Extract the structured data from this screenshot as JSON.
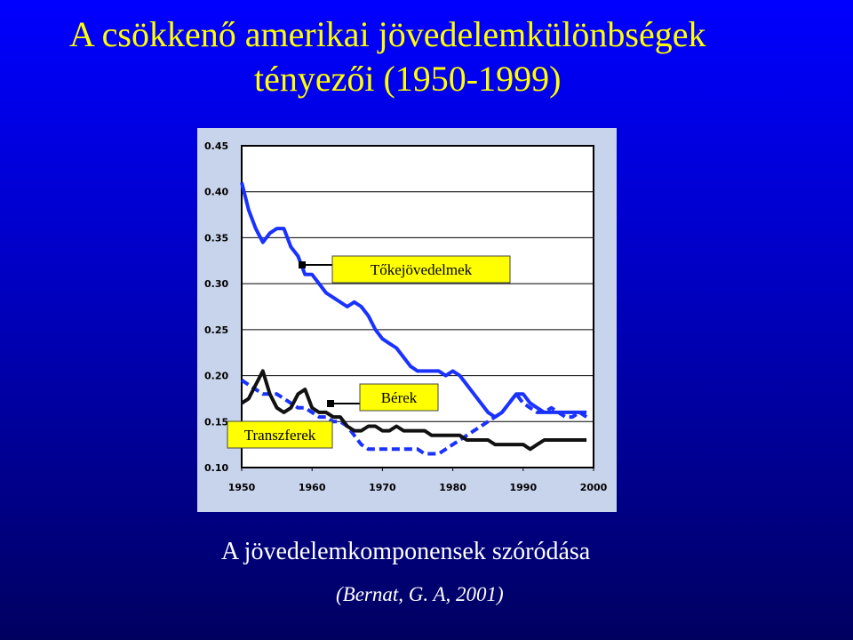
{
  "slide": {
    "title_line1": "A csökkenő amerikai jövedelemkülönbségek",
    "title_line2": "tényezői  (1950-1999)",
    "caption": "A jövedelemkomponensek szóródása",
    "source": "(Bernat, G. A, 2001)"
  },
  "chart_data": {
    "type": "line",
    "title": "",
    "xlabel": "",
    "ylabel": "",
    "xlim": [
      1950,
      2000
    ],
    "ylim": [
      0.1,
      0.45
    ],
    "x_ticks": [
      "1950",
      "1960",
      "1970",
      "1980",
      "1990",
      "2000"
    ],
    "y_ticks": [
      "0.10",
      "0.15",
      "0.20",
      "0.25",
      "0.30",
      "0.35",
      "0.40",
      "0.45"
    ],
    "grid": true,
    "series": [
      {
        "name": "Tőkejövedelmek",
        "color": "#1a32ff",
        "style": "solid",
        "points": [
          [
            1950,
            0.41
          ],
          [
            1951,
            0.38
          ],
          [
            1952,
            0.36
          ],
          [
            1953,
            0.345
          ],
          [
            1954,
            0.355
          ],
          [
            1955,
            0.36
          ],
          [
            1956,
            0.36
          ],
          [
            1957,
            0.34
          ],
          [
            1958,
            0.33
          ],
          [
            1959,
            0.31
          ],
          [
            1960,
            0.31
          ],
          [
            1961,
            0.3
          ],
          [
            1962,
            0.29
          ],
          [
            1963,
            0.285
          ],
          [
            1964,
            0.28
          ],
          [
            1965,
            0.275
          ],
          [
            1966,
            0.28
          ],
          [
            1967,
            0.275
          ],
          [
            1968,
            0.265
          ],
          [
            1969,
            0.25
          ],
          [
            1970,
            0.24
          ],
          [
            1971,
            0.235
          ],
          [
            1972,
            0.23
          ],
          [
            1973,
            0.22
          ],
          [
            1974,
            0.21
          ],
          [
            1975,
            0.205
          ],
          [
            1976,
            0.205
          ],
          [
            1977,
            0.205
          ],
          [
            1978,
            0.205
          ],
          [
            1979,
            0.2
          ],
          [
            1980,
            0.205
          ],
          [
            1981,
            0.2
          ],
          [
            1982,
            0.19
          ],
          [
            1983,
            0.18
          ],
          [
            1984,
            0.17
          ],
          [
            1985,
            0.16
          ],
          [
            1986,
            0.155
          ],
          [
            1987,
            0.16
          ],
          [
            1988,
            0.17
          ],
          [
            1989,
            0.18
          ],
          [
            1990,
            0.18
          ],
          [
            1991,
            0.17
          ],
          [
            1992,
            0.165
          ],
          [
            1993,
            0.16
          ],
          [
            1994,
            0.16
          ],
          [
            1995,
            0.16
          ],
          [
            1996,
            0.16
          ],
          [
            1997,
            0.16
          ],
          [
            1998,
            0.16
          ],
          [
            1999,
            0.16
          ]
        ]
      },
      {
        "name": "Bérek",
        "color": "#1a32ff",
        "style": "dashed",
        "points": [
          [
            1950,
            0.195
          ],
          [
            1951,
            0.19
          ],
          [
            1952,
            0.185
          ],
          [
            1953,
            0.18
          ],
          [
            1954,
            0.18
          ],
          [
            1955,
            0.18
          ],
          [
            1956,
            0.175
          ],
          [
            1957,
            0.17
          ],
          [
            1958,
            0.165
          ],
          [
            1959,
            0.165
          ],
          [
            1960,
            0.16
          ],
          [
            1961,
            0.155
          ],
          [
            1962,
            0.155
          ],
          [
            1963,
            0.15
          ],
          [
            1964,
            0.15
          ],
          [
            1965,
            0.145
          ],
          [
            1966,
            0.135
          ],
          [
            1967,
            0.125
          ],
          [
            1968,
            0.12
          ],
          [
            1969,
            0.12
          ],
          [
            1970,
            0.12
          ],
          [
            1971,
            0.12
          ],
          [
            1972,
            0.12
          ],
          [
            1973,
            0.12
          ],
          [
            1974,
            0.12
          ],
          [
            1975,
            0.12
          ],
          [
            1976,
            0.115
          ],
          [
            1977,
            0.115
          ],
          [
            1978,
            0.115
          ],
          [
            1979,
            0.12
          ],
          [
            1980,
            0.125
          ],
          [
            1981,
            0.13
          ],
          [
            1982,
            0.135
          ],
          [
            1983,
            0.14
          ],
          [
            1984,
            0.145
          ],
          [
            1985,
            0.15
          ],
          [
            1986,
            0.155
          ],
          [
            1987,
            0.16
          ],
          [
            1988,
            0.17
          ],
          [
            1989,
            0.18
          ],
          [
            1990,
            0.17
          ],
          [
            1991,
            0.165
          ],
          [
            1992,
            0.16
          ],
          [
            1993,
            0.16
          ],
          [
            1994,
            0.165
          ],
          [
            1995,
            0.16
          ],
          [
            1996,
            0.155
          ],
          [
            1997,
            0.155
          ],
          [
            1998,
            0.16
          ],
          [
            1999,
            0.155
          ]
        ]
      },
      {
        "name": "Transzferek",
        "color": "#111111",
        "style": "solid",
        "points": [
          [
            1950,
            0.17
          ],
          [
            1951,
            0.175
          ],
          [
            1952,
            0.19
          ],
          [
            1953,
            0.205
          ],
          [
            1954,
            0.18
          ],
          [
            1955,
            0.165
          ],
          [
            1956,
            0.16
          ],
          [
            1957,
            0.165
          ],
          [
            1958,
            0.18
          ],
          [
            1959,
            0.185
          ],
          [
            1960,
            0.165
          ],
          [
            1961,
            0.16
          ],
          [
            1962,
            0.16
          ],
          [
            1963,
            0.155
          ],
          [
            1964,
            0.155
          ],
          [
            1965,
            0.145
          ],
          [
            1966,
            0.14
          ],
          [
            1967,
            0.14
          ],
          [
            1968,
            0.145
          ],
          [
            1969,
            0.145
          ],
          [
            1970,
            0.14
          ],
          [
            1971,
            0.14
          ],
          [
            1972,
            0.145
          ],
          [
            1973,
            0.14
          ],
          [
            1974,
            0.14
          ],
          [
            1975,
            0.14
          ],
          [
            1976,
            0.14
          ],
          [
            1977,
            0.135
          ],
          [
            1978,
            0.135
          ],
          [
            1979,
            0.135
          ],
          [
            1980,
            0.135
          ],
          [
            1981,
            0.135
          ],
          [
            1982,
            0.13
          ],
          [
            1983,
            0.13
          ],
          [
            1984,
            0.13
          ],
          [
            1985,
            0.13
          ],
          [
            1986,
            0.125
          ],
          [
            1987,
            0.125
          ],
          [
            1988,
            0.125
          ],
          [
            1989,
            0.125
          ],
          [
            1990,
            0.125
          ],
          [
            1991,
            0.12
          ],
          [
            1992,
            0.125
          ],
          [
            1993,
            0.13
          ],
          [
            1994,
            0.13
          ],
          [
            1995,
            0.13
          ],
          [
            1996,
            0.13
          ],
          [
            1997,
            0.13
          ],
          [
            1998,
            0.13
          ],
          [
            1999,
            0.13
          ]
        ]
      }
    ],
    "annotations": [
      {
        "text": "Tőkejövedelmek",
        "box_color": "#ffff00",
        "series": "Tőkejövedelmek"
      },
      {
        "text": "Bérek",
        "box_color": "#ffff00",
        "series": "Bérek"
      },
      {
        "text": "Transzferek",
        "box_color": "#ffff00",
        "series": "Transzferek"
      }
    ]
  }
}
